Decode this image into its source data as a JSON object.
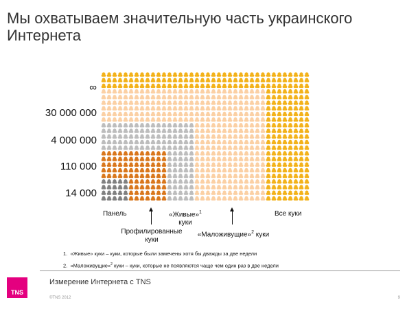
{
  "title": [
    "Мы охватываем значительную часть украинского",
    "Интернета"
  ],
  "y_labels": [
    "∞",
    "30 000 000",
    "4 000 000",
    "110 000",
    "14 000"
  ],
  "captions": {
    "panel": "Панель",
    "profiled": [
      "Профилированные",
      "куки"
    ],
    "live": [
      "«Живые»",
      "куки"
    ],
    "live_sup": "1",
    "low_live": "«Маложивущие»",
    "low_live_sup": "2",
    "low_live_suffix": " куки",
    "all": "Все куки"
  },
  "notes": [
    {
      "num": "1.",
      "text": "«Живые» куки – куки, которые были замечены хотя бы дважды за две недели",
      "sup": ""
    },
    {
      "num": "2.",
      "text": "«Маложивущие»",
      "sup": "2",
      "rest": "куки  – куки, которые не появляются чаще чем один раз в две недели"
    }
  ],
  "footer": {
    "logo": "TNS",
    "text": "Измерение Интернета с TNS",
    "copyright": "©TNS 2012",
    "page": "9"
  },
  "colors": {
    "all_cookies": "#f3b21a",
    "low_live": "#fbd0a4",
    "live": "#bdbdbd",
    "profiled": "#d9771c",
    "panel": "#808080"
  }
}
